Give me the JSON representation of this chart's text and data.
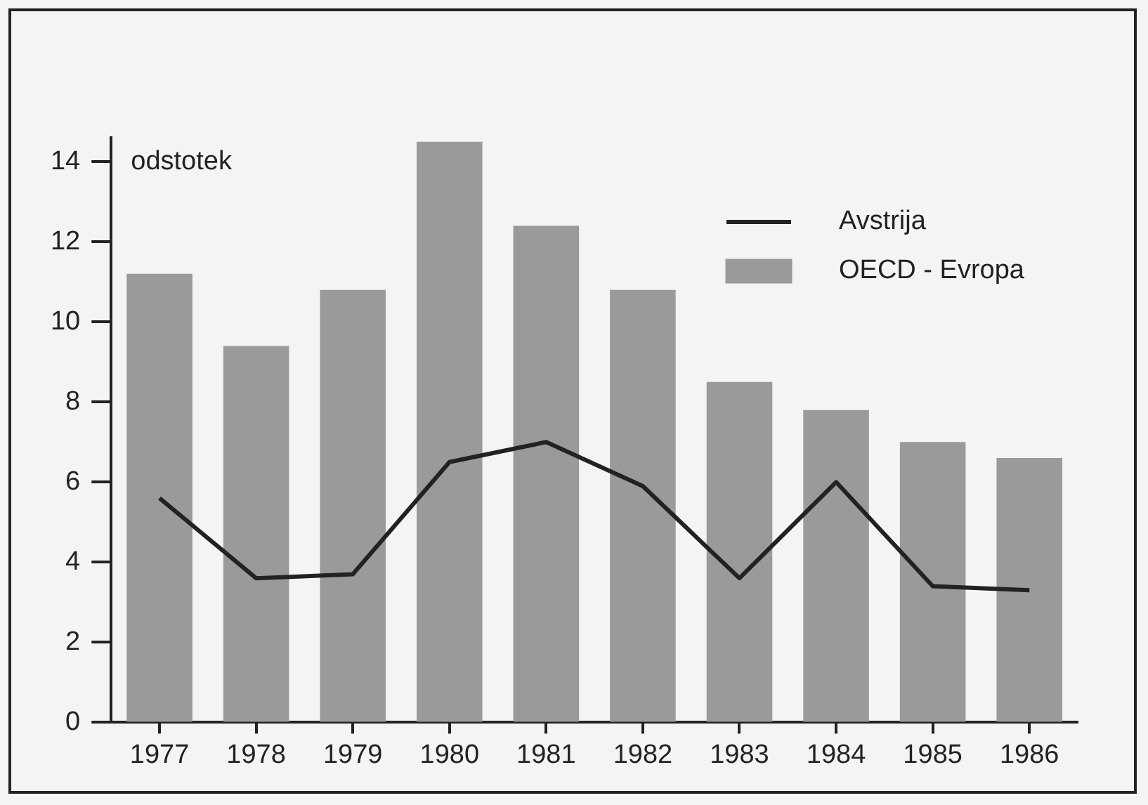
{
  "chart_data": {
    "type": "bar",
    "ylabel": "odstotek",
    "categories": [
      "1977",
      "1978",
      "1979",
      "1980",
      "1981",
      "1982",
      "1983",
      "1984",
      "1985",
      "1986"
    ],
    "series": [
      {
        "name": "Avstrija",
        "type": "line",
        "color": "#222222",
        "values": [
          5.6,
          3.6,
          3.7,
          6.5,
          7.0,
          5.9,
          3.6,
          6.0,
          3.4,
          3.3
        ]
      },
      {
        "name": "OECD - Evropa",
        "color": "#9a9a9a",
        "values": [
          11.2,
          9.4,
          10.8,
          14.5,
          12.4,
          10.8,
          8.5,
          7.8,
          7.0,
          6.6
        ]
      }
    ],
    "ylim": [
      0,
      14.6
    ],
    "yticks": [
      0,
      2,
      4,
      6,
      8,
      10,
      12,
      14
    ],
    "grid": false,
    "legend": "top right",
    "marker": "none"
  }
}
